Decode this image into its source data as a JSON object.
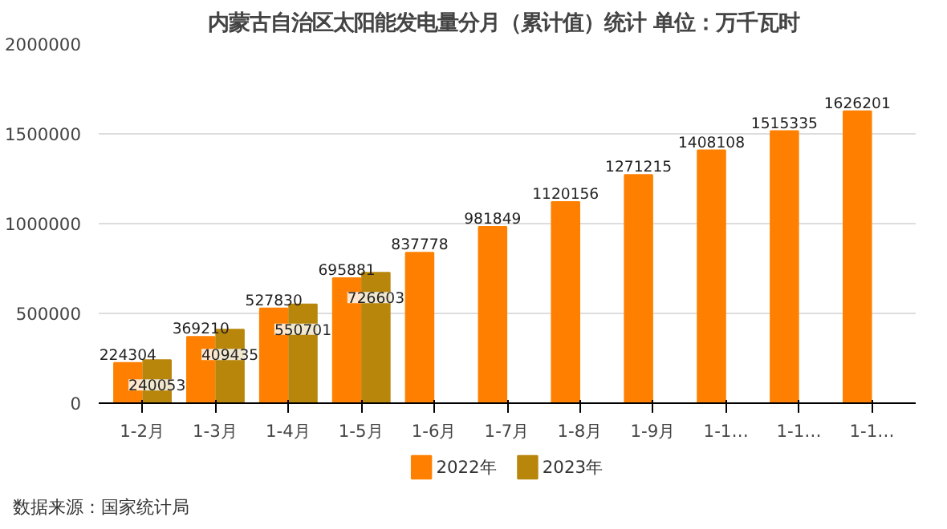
{
  "chart_data": {
    "type": "bar",
    "title": "内蒙古自治区太阳能发电量分月（累计值）统计  单位：万千瓦时",
    "categories": [
      "1-2月",
      "1-3月",
      "1-4月",
      "1-5月",
      "1-6月",
      "1-7月",
      "1-8月",
      "1-9月",
      "1-1…",
      "1-1…",
      "1-1…"
    ],
    "series": [
      {
        "name": "2022年",
        "color": "#ff8000",
        "values": [
          224304,
          369210,
          527830,
          695881,
          837778,
          981849,
          1120156,
          1271215,
          1408108,
          1515335,
          1626201
        ]
      },
      {
        "name": "2023年",
        "color": "#b8860b",
        "values": [
          240053,
          409435,
          550701,
          726603,
          null,
          null,
          null,
          null,
          null,
          null,
          null
        ]
      }
    ],
    "ylim": [
      0,
      2000000
    ],
    "yticks": [
      0,
      500000,
      1000000,
      1500000,
      2000000
    ],
    "grid": "y",
    "legend": "bottom",
    "data_labels": true,
    "annotations": [
      "数据来源：国家统计局"
    ]
  }
}
